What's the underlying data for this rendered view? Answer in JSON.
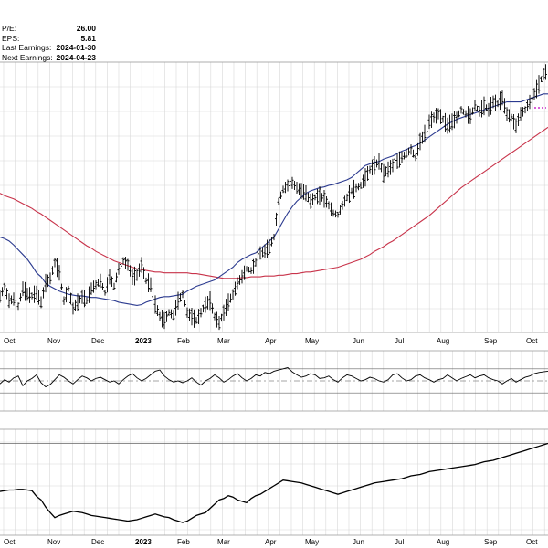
{
  "info": [
    {
      "label": "P/E:",
      "value": "26.00"
    },
    {
      "label": "EPS:",
      "value": "5.81"
    },
    {
      "label": "Last Earnings:",
      "value": "2024-01-30"
    },
    {
      "label": "Next Earnings:",
      "value": "2024-04-23"
    }
  ],
  "colors": {
    "price": "#000000",
    "ma_short": "#2b3a8f",
    "ma_long": "#c8334a",
    "grid": "#d8d8d8",
    "osc_fill": "#3e7a3a",
    "marker": "#c000c0"
  },
  "chart_data": [
    {
      "type": "ohlc",
      "x_ticks": [
        "Oct",
        "Nov",
        "Dec",
        "2023",
        "Feb",
        "Mar",
        "Apr",
        "May",
        "Jun",
        "Jul",
        "Aug",
        "Sep",
        "Oct"
      ],
      "bold_tick": "2023",
      "x": [
        0,
        5,
        10,
        15,
        20,
        25,
        30,
        35,
        40,
        45,
        50,
        55,
        60,
        65,
        70,
        75,
        80,
        85,
        90,
        95,
        100,
        105,
        110,
        115,
        120,
        125,
        130,
        135,
        140,
        145,
        150,
        155,
        160,
        165,
        170,
        175,
        180,
        185,
        190,
        195,
        200,
        205,
        210,
        215,
        220,
        225,
        230,
        235,
        240,
        245,
        250,
        255,
        260,
        265,
        270,
        275,
        280,
        285,
        290,
        295,
        300,
        305,
        310,
        315,
        320,
        325,
        330,
        335,
        340,
        345,
        350,
        355,
        360,
        365,
        370,
        375,
        380,
        385,
        390,
        395,
        400,
        405,
        410,
        415,
        420,
        425,
        430,
        435,
        440,
        445,
        450,
        455,
        460,
        465,
        470,
        475,
        480,
        485,
        490,
        495,
        500,
        505,
        510,
        515,
        520,
        525,
        530,
        535,
        540,
        545,
        550,
        555,
        560,
        565,
        570,
        575,
        580,
        585,
        590,
        595,
        600
      ],
      "price": [
        45,
        58,
        40,
        42,
        33,
        55,
        48,
        46,
        50,
        38,
        62,
        68,
        88,
        75,
        40,
        55,
        30,
        38,
        45,
        40,
        55,
        60,
        65,
        50,
        70,
        58,
        80,
        90,
        85,
        70,
        72,
        85,
        65,
        60,
        35,
        20,
        15,
        25,
        22,
        40,
        48,
        25,
        20,
        15,
        25,
        35,
        40,
        20,
        12,
        25,
        38,
        48,
        62,
        70,
        80,
        78,
        88,
        100,
        102,
        108,
        120,
        165,
        180,
        185,
        188,
        182,
        178,
        175,
        165,
        170,
        172,
        168,
        160,
        150,
        148,
        160,
        170,
        178,
        182,
        185,
        195,
        205,
        210,
        215,
        200,
        205,
        210,
        215,
        220,
        225,
        230,
        220,
        240,
        250,
        265,
        270,
        275,
        268,
        260,
        265,
        270,
        280,
        275,
        272,
        285,
        278,
        285,
        280,
        290,
        288,
        295,
        275,
        270,
        260,
        275,
        280,
        290,
        300,
        312,
        325,
        330
      ],
      "ma_short": [
        120,
        118,
        115,
        110,
        104,
        98,
        92,
        84,
        75,
        70,
        62,
        58,
        55,
        52,
        50,
        48,
        47,
        46,
        46,
        45,
        44,
        44,
        43,
        42,
        41,
        40,
        38,
        37,
        36,
        35,
        34,
        35,
        38,
        40,
        42,
        44,
        45,
        45,
        46,
        47,
        48,
        52,
        55,
        58,
        60,
        62,
        64,
        66,
        70,
        74,
        78,
        82,
        88,
        92,
        95,
        98,
        100,
        105,
        110,
        115,
        120,
        130,
        140,
        150,
        158,
        165,
        170,
        175,
        178,
        180,
        182,
        183,
        185,
        186,
        188,
        190,
        192,
        195,
        200,
        205,
        210,
        212,
        214,
        215,
        218,
        220,
        222,
        225,
        228,
        230,
        233,
        235,
        238,
        242,
        246,
        250,
        254,
        258,
        262,
        265,
        268,
        270,
        272,
        274,
        276,
        278,
        280,
        282,
        284,
        286,
        288,
        290,
        290,
        290,
        290,
        292,
        294,
        296,
        298,
        300,
        300
      ],
      "ma_long": [
        175,
        172,
        170,
        168,
        165,
        162,
        159,
        156,
        152,
        149,
        145,
        141,
        137,
        133,
        129,
        125,
        121,
        117,
        113,
        109,
        106,
        102,
        99,
        96,
        93,
        90,
        88,
        86,
        84,
        82,
        80,
        79,
        78,
        77,
        76,
        76,
        75,
        75,
        75,
        75,
        75,
        75,
        74,
        74,
        73,
        72,
        71,
        70,
        69,
        68,
        68,
        68,
        68,
        69,
        69,
        70,
        70,
        70,
        71,
        71,
        71,
        72,
        72,
        73,
        74,
        74,
        75,
        76,
        76,
        77,
        78,
        79,
        80,
        81,
        82,
        84,
        86,
        88,
        90,
        92,
        95,
        98,
        102,
        105,
        108,
        112,
        115,
        119,
        123,
        127,
        131,
        135,
        139,
        143,
        147,
        152,
        157,
        162,
        167,
        172,
        177,
        182,
        186,
        190,
        194,
        198,
        202,
        206,
        210,
        214,
        218,
        222,
        226,
        230,
        234,
        238,
        242,
        246,
        250,
        254,
        258
      ],
      "ylim": [
        0,
        340
      ]
    },
    {
      "type": "line",
      "x_ticks": [],
      "x": [
        0,
        5,
        10,
        15,
        20,
        25,
        30,
        35,
        40,
        45,
        50,
        55,
        60,
        65,
        70,
        75,
        80,
        85,
        90,
        95,
        100,
        105,
        110,
        115,
        120,
        125,
        130,
        135,
        140,
        145,
        150,
        155,
        160,
        165,
        170,
        175,
        180,
        185,
        190,
        195,
        200,
        205,
        210,
        215,
        220,
        225,
        230,
        235,
        240,
        245,
        250,
        255,
        260,
        265,
        270,
        275,
        280,
        285,
        290,
        295,
        300,
        305,
        310,
        315,
        320,
        325,
        330,
        335,
        340,
        345,
        350,
        355,
        360,
        365,
        370,
        375,
        380,
        385,
        390,
        395,
        400,
        405,
        410,
        415,
        420,
        425,
        430,
        435,
        440,
        445,
        450,
        455,
        460,
        465,
        470,
        475,
        480,
        485,
        490,
        495,
        500,
        505,
        510,
        515,
        520,
        525,
        530,
        535,
        540,
        545,
        550,
        555,
        560,
        565,
        570,
        575,
        580,
        585,
        590,
        595,
        600
      ],
      "values": [
        45,
        52,
        48,
        55,
        58,
        42,
        50,
        54,
        60,
        47,
        40,
        44,
        52,
        60,
        56,
        50,
        45,
        52,
        58,
        55,
        50,
        54,
        56,
        52,
        48,
        50,
        45,
        52,
        58,
        62,
        55,
        50,
        54,
        60,
        66,
        68,
        58,
        52,
        48,
        50,
        47,
        50,
        55,
        48,
        43,
        50,
        54,
        60,
        55,
        48,
        52,
        58,
        62,
        55,
        50,
        54,
        60,
        58,
        64,
        62,
        66,
        68,
        70,
        72,
        65,
        60,
        56,
        58,
        62,
        60,
        54,
        55,
        58,
        52,
        48,
        55,
        60,
        58,
        54,
        50,
        52,
        56,
        54,
        50,
        48,
        52,
        60,
        62,
        55,
        50,
        52,
        58,
        60,
        55,
        52,
        48,
        52,
        54,
        60,
        55,
        50,
        54,
        57,
        60,
        55,
        58,
        60,
        55,
        52,
        50,
        45,
        50,
        54,
        48,
        52,
        56,
        58,
        62,
        64,
        65,
        66
      ],
      "ref_lines": [
        30,
        50,
        70
      ],
      "ylim": [
        0,
        100
      ]
    },
    {
      "type": "line",
      "x_ticks": [
        "Oct",
        "Nov",
        "Dec",
        "2023",
        "Feb",
        "Mar",
        "Apr",
        "May",
        "Jun",
        "Jul",
        "Aug",
        "Sep",
        "Oct"
      ],
      "x": [
        0,
        5,
        10,
        15,
        20,
        25,
        30,
        35,
        40,
        45,
        50,
        55,
        60,
        65,
        70,
        75,
        80,
        85,
        90,
        95,
        100,
        105,
        110,
        115,
        120,
        125,
        130,
        135,
        140,
        145,
        150,
        155,
        160,
        165,
        170,
        175,
        180,
        185,
        190,
        195,
        200,
        205,
        210,
        215,
        220,
        225,
        230,
        235,
        240,
        245,
        250,
        255,
        260,
        265,
        270,
        275,
        280,
        285,
        290,
        295,
        300,
        305,
        310,
        315,
        320,
        325,
        330,
        335,
        340,
        345,
        350,
        355,
        360,
        365,
        370,
        375,
        380,
        385,
        390,
        395,
        400,
        405,
        410,
        415,
        420,
        425,
        430,
        435,
        440,
        445,
        450,
        455,
        460,
        465,
        470,
        475,
        480,
        485,
        490,
        495,
        500,
        505,
        510,
        515,
        520,
        525,
        530,
        535,
        540,
        545,
        550,
        555,
        560,
        565,
        570,
        575,
        580,
        585,
        590,
        595,
        600
      ],
      "values": [
        62,
        63,
        64,
        64,
        65,
        65,
        64,
        63,
        55,
        50,
        40,
        32,
        25,
        28,
        30,
        32,
        34,
        33,
        32,
        30,
        28,
        27,
        26,
        25,
        24,
        23,
        22,
        21,
        20,
        21,
        22,
        24,
        26,
        28,
        30,
        28,
        26,
        25,
        22,
        20,
        18,
        20,
        24,
        28,
        30,
        32,
        38,
        44,
        50,
        52,
        56,
        54,
        50,
        48,
        46,
        52,
        56,
        58,
        62,
        66,
        70,
        74,
        78,
        77,
        76,
        75,
        74,
        72,
        70,
        68,
        66,
        64,
        62,
        60,
        58,
        60,
        62,
        64,
        66,
        68,
        70,
        72,
        74,
        75,
        76,
        77,
        78,
        79,
        80,
        82,
        84,
        85,
        86,
        88,
        90,
        91,
        92,
        93,
        94,
        95,
        96,
        97,
        98,
        99,
        100,
        102,
        104,
        105,
        106,
        108,
        110,
        112,
        114,
        116,
        118,
        120,
        122,
        124,
        126,
        128,
        130
      ],
      "ref_lines": [
        130
      ],
      "ylim": [
        0,
        150
      ]
    }
  ]
}
